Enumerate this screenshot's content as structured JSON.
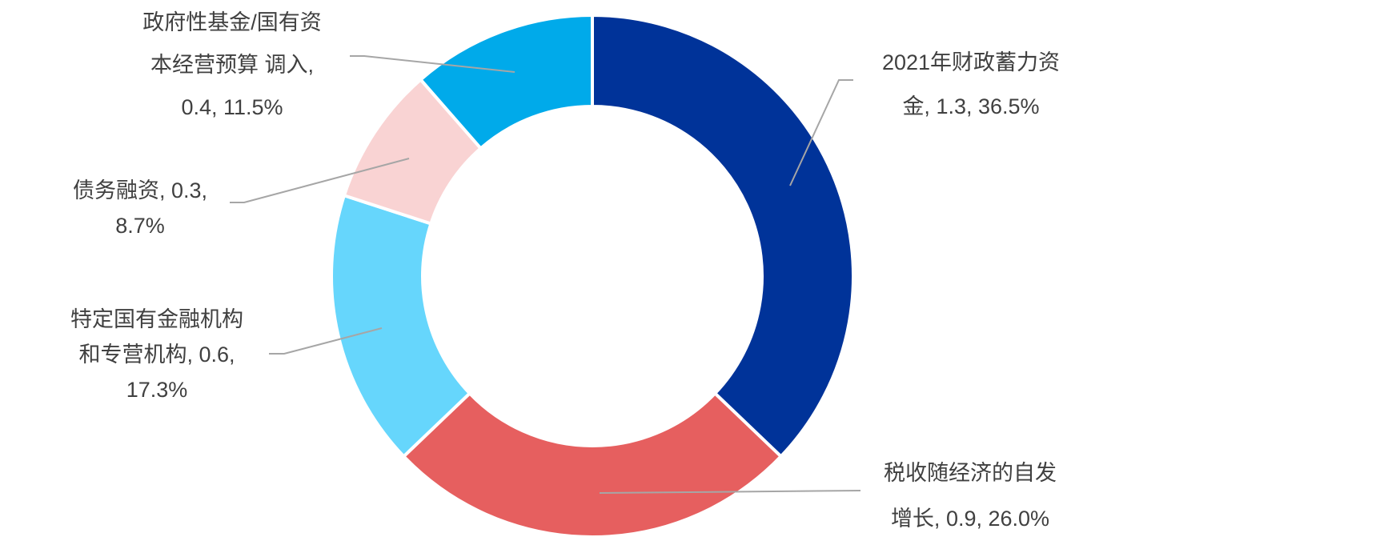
{
  "chart_data": {
    "type": "pie",
    "variant": "donut",
    "title": "",
    "legend": "none",
    "slices": [
      {
        "name": "2021年财政蓄力资金",
        "value": 1.3,
        "percent": "36.5%",
        "color": "#003399",
        "label_lines": [
          "2021年财政蓄力资",
          "金, 1.3, 36.5%"
        ]
      },
      {
        "name": "税收随经济的自发增长",
        "value": 0.9,
        "percent": "26.0%",
        "color": "#e65f5f",
        "label_lines": [
          "税收随经济的自发",
          "增长, 0.9, 26.0%"
        ]
      },
      {
        "name": "特定国有金融机构和专营机构",
        "value": 0.6,
        "percent": "17.3%",
        "color": "#66d6fc",
        "label_lines": [
          "特定国有金融机构",
          "和专营机构, 0.6,",
          "17.3%"
        ]
      },
      {
        "name": "债务融资",
        "value": 0.3,
        "percent": "8.7%",
        "color": "#f9d3d3",
        "label_lines": [
          "债务融资, 0.3,",
          "8.7%"
        ]
      },
      {
        "name": "政府性基金/国有资本经营预算 调入",
        "value": 0.4,
        "percent": "11.5%",
        "color": "#00aaea",
        "label_lines": [
          "政府性基金/国有资",
          "本经营预算 调入,",
          "0.4, 11.5%"
        ]
      }
    ]
  }
}
